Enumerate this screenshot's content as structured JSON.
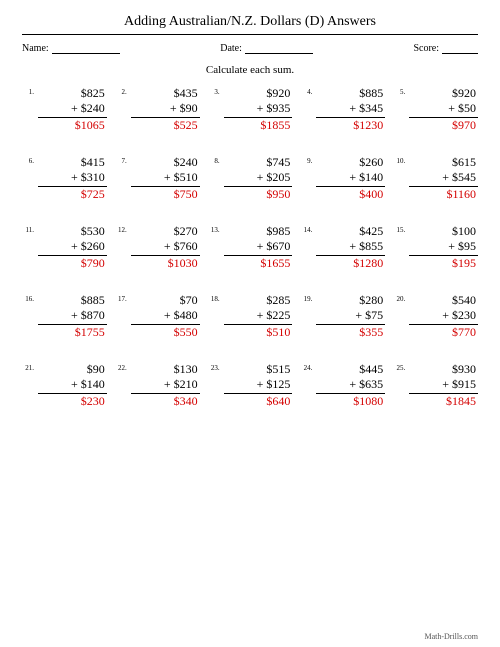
{
  "title": "Adding Australian/N.Z. Dollars (D) Answers",
  "labels": {
    "name": "Name:",
    "date": "Date:",
    "score": "Score:"
  },
  "instruction": "Calculate each sum.",
  "footer": "Math-Drills.com",
  "colors": {
    "answer": "#d40000"
  },
  "problems": [
    {
      "n": "1.",
      "a": "$825",
      "b": "+ $240",
      "ans": "$1065"
    },
    {
      "n": "2.",
      "a": "$435",
      "b": "+ $90",
      "ans": "$525"
    },
    {
      "n": "3.",
      "a": "$920",
      "b": "+ $935",
      "ans": "$1855"
    },
    {
      "n": "4.",
      "a": "$885",
      "b": "+ $345",
      "ans": "$1230"
    },
    {
      "n": "5.",
      "a": "$920",
      "b": "+ $50",
      "ans": "$970"
    },
    {
      "n": "6.",
      "a": "$415",
      "b": "+ $310",
      "ans": "$725"
    },
    {
      "n": "7.",
      "a": "$240",
      "b": "+ $510",
      "ans": "$750"
    },
    {
      "n": "8.",
      "a": "$745",
      "b": "+ $205",
      "ans": "$950"
    },
    {
      "n": "9.",
      "a": "$260",
      "b": "+ $140",
      "ans": "$400"
    },
    {
      "n": "10.",
      "a": "$615",
      "b": "+ $545",
      "ans": "$1160"
    },
    {
      "n": "11.",
      "a": "$530",
      "b": "+ $260",
      "ans": "$790"
    },
    {
      "n": "12.",
      "a": "$270",
      "b": "+ $760",
      "ans": "$1030"
    },
    {
      "n": "13.",
      "a": "$985",
      "b": "+ $670",
      "ans": "$1655"
    },
    {
      "n": "14.",
      "a": "$425",
      "b": "+ $855",
      "ans": "$1280"
    },
    {
      "n": "15.",
      "a": "$100",
      "b": "+ $95",
      "ans": "$195"
    },
    {
      "n": "16.",
      "a": "$885",
      "b": "+ $870",
      "ans": "$1755"
    },
    {
      "n": "17.",
      "a": "$70",
      "b": "+ $480",
      "ans": "$550"
    },
    {
      "n": "18.",
      "a": "$285",
      "b": "+ $225",
      "ans": "$510"
    },
    {
      "n": "19.",
      "a": "$280",
      "b": "+ $75",
      "ans": "$355"
    },
    {
      "n": "20.",
      "a": "$540",
      "b": "+ $230",
      "ans": "$770"
    },
    {
      "n": "21.",
      "a": "$90",
      "b": "+ $140",
      "ans": "$230"
    },
    {
      "n": "22.",
      "a": "$130",
      "b": "+ $210",
      "ans": "$340"
    },
    {
      "n": "23.",
      "a": "$515",
      "b": "+ $125",
      "ans": "$640"
    },
    {
      "n": "24.",
      "a": "$445",
      "b": "+ $635",
      "ans": "$1080"
    },
    {
      "n": "25.",
      "a": "$930",
      "b": "+ $915",
      "ans": "$1845"
    }
  ]
}
